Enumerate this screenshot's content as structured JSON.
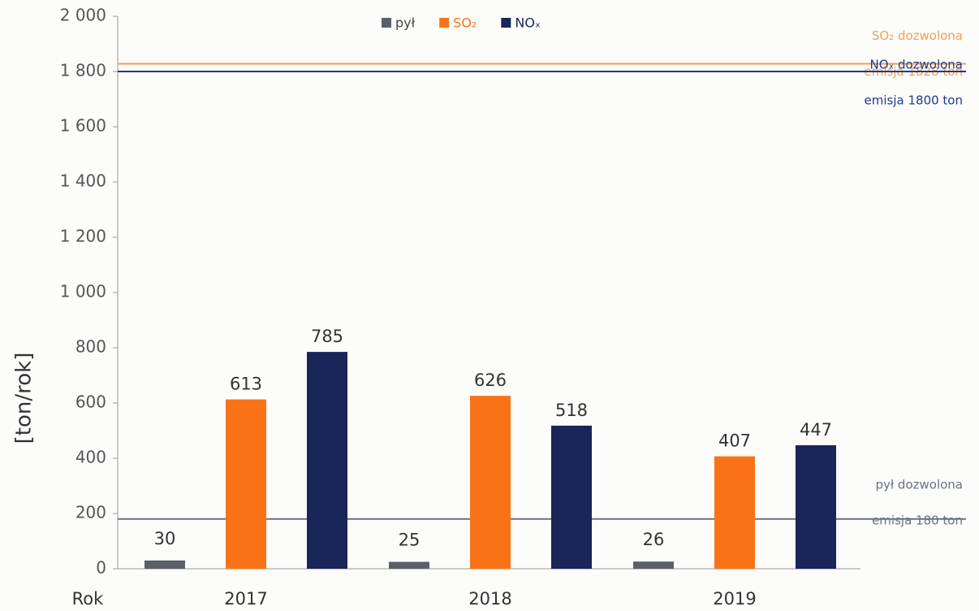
{
  "chart_data": {
    "type": "bar",
    "y_label": "[ton/rok]",
    "x_label": "Rok",
    "categories": [
      "2017",
      "2018",
      "2019"
    ],
    "series": [
      {
        "name": "pył",
        "color": "#5b5f66",
        "values": [
          30,
          25,
          26
        ]
      },
      {
        "name": "SO₂",
        "color": "#f97316",
        "values": [
          613,
          626,
          407
        ]
      },
      {
        "name": "NOₓ",
        "color": "#1a2559",
        "values": [
          785,
          518,
          447
        ]
      }
    ],
    "ylim": [
      0,
      2000
    ],
    "yticks": [
      0,
      200,
      400,
      600,
      800,
      {
        "value": 1000,
        "label": "1 000"
      },
      {
        "value": 1200,
        "label": "1 200"
      },
      {
        "value": 1400,
        "label": "1 400"
      },
      {
        "value": 1600,
        "label": "1 600"
      },
      {
        "value": 1800,
        "label": "1 800"
      },
      {
        "value": 2000,
        "label": "2 000"
      }
    ],
    "grid": false,
    "legend": "top",
    "reference_lines": [
      {
        "value": 1828,
        "color": "#f0a050",
        "label": [
          "SO₂ dozwolona",
          "emisja 1828 ton"
        ]
      },
      {
        "value": 1800,
        "color": "#1e3a8a",
        "label": [
          "NOₓ dozwolona",
          "emisja 1800 ton"
        ]
      },
      {
        "value": 180,
        "color": "#6b7280",
        "label": [
          "pył dozwolona",
          "emisja 180 ton"
        ]
      }
    ]
  }
}
